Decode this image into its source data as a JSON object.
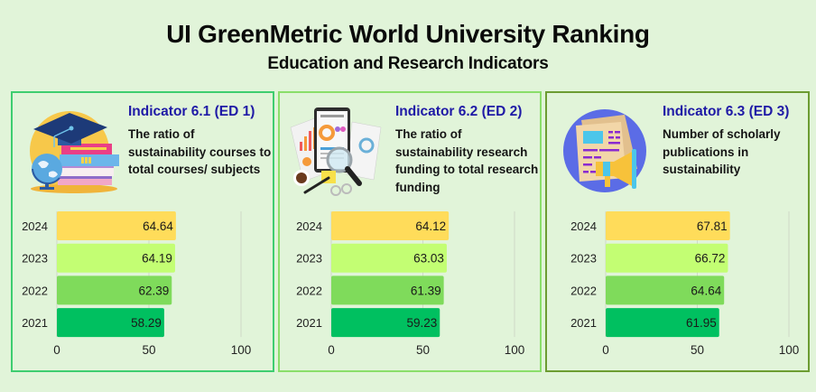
{
  "header": {
    "title": "UI GreenMetric World University Ranking",
    "subtitle": "Education and Research Indicators"
  },
  "colors": {
    "background": "#e1f4d9",
    "indicator_title": "#1f1aa6",
    "bars": {
      "2024": "#ffdc5a",
      "2023": "#c3fe73",
      "2022": "#7fdb5b",
      "2021": "#00c060"
    },
    "panel_borders": [
      "#3ecd70",
      "#8ade6a",
      "#6c9c32"
    ]
  },
  "panels": [
    {
      "icon": "graduation-books-globe-icon",
      "indicator": "Indicator 6.1 (ED 1)",
      "description": "The ratio of sustainability courses to total courses/ subjects"
    },
    {
      "icon": "research-documents-magnifier-icon",
      "indicator": "Indicator 6.2 (ED 2)",
      "description": "The ratio of sustainability research funding to total research funding"
    },
    {
      "icon": "publications-megaphone-icon",
      "indicator": "Indicator 6.3 (ED 3)",
      "description": "Number of scholarly publications in sustainability"
    }
  ],
  "chart_data": [
    {
      "type": "bar",
      "orientation": "horizontal",
      "title": "Indicator 6.1 (ED 1)",
      "categories": [
        "2024",
        "2023",
        "2022",
        "2021"
      ],
      "values": [
        64.64,
        64.19,
        62.39,
        58.29
      ],
      "value_labels": [
        "64.64",
        "64.19",
        "62.39",
        "58.29"
      ],
      "xlim": [
        0,
        100
      ],
      "xticks": [
        "0",
        "50",
        "100"
      ],
      "xtick_values": [
        0,
        50,
        100
      ],
      "grid": true,
      "xlabel": "",
      "ylabel": ""
    },
    {
      "type": "bar",
      "orientation": "horizontal",
      "title": "Indicator 6.2 (ED 2)",
      "categories": [
        "2024",
        "2023",
        "2022",
        "2021"
      ],
      "values": [
        64.12,
        63.03,
        61.39,
        59.23
      ],
      "value_labels": [
        "64.12",
        "63.03",
        "61.39",
        "59.23"
      ],
      "xlim": [
        0,
        100
      ],
      "xticks": [
        "0",
        "50",
        "100"
      ],
      "xtick_values": [
        0,
        50,
        100
      ],
      "grid": true,
      "xlabel": "",
      "ylabel": ""
    },
    {
      "type": "bar",
      "orientation": "horizontal",
      "title": "Indicator 6.3 (ED 3)",
      "categories": [
        "2024",
        "2023",
        "2022",
        "2021"
      ],
      "values": [
        67.81,
        66.72,
        64.64,
        61.95
      ],
      "value_labels": [
        "67.81",
        "66.72",
        "64.64",
        "61.95"
      ],
      "xlim": [
        0,
        100
      ],
      "xticks": [
        "0",
        "50",
        "100"
      ],
      "xtick_values": [
        0,
        50,
        100
      ],
      "grid": true,
      "xlabel": "",
      "ylabel": ""
    }
  ]
}
